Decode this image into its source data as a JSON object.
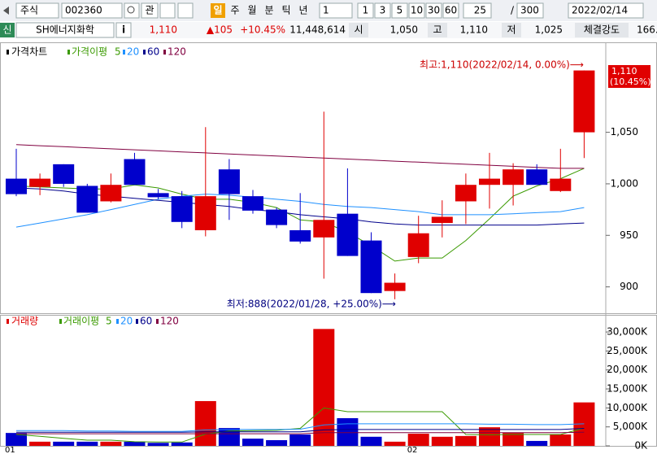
{
  "toolbar": {
    "market": "주식",
    "code": "002360",
    "button": "관",
    "periods": [
      "일",
      "주",
      "월",
      "분",
      "틱",
      "년"
    ],
    "interval": "1",
    "minutes": [
      "1",
      "3",
      "5",
      "10",
      "30",
      "60"
    ],
    "count": "25",
    "separator": "/",
    "total": "300",
    "date": "2022/02/14"
  },
  "quote": {
    "badge": "신",
    "name": "SH에너지화학",
    "info": "i",
    "price": "1,110",
    "change": "▲105",
    "rate": "+10.45%",
    "volume": "11,448,614",
    "open_label": "시",
    "open": "1,050",
    "high_label": "고",
    "high": "1,110",
    "low_label": "저",
    "low": "1,025",
    "strength_label": "체결강도",
    "strength": "166."
  },
  "chart_data": [
    {
      "type": "candlestick",
      "title": "가격차트",
      "ma_label": "가격이평",
      "up_color": "#e00000",
      "down_color": "#0000cc",
      "categories": [
        "01",
        null,
        null,
        null,
        null,
        null,
        null,
        null,
        null,
        null,
        null,
        null,
        null,
        null,
        null,
        null,
        null,
        "02",
        null,
        null,
        null,
        null,
        null,
        null,
        null
      ],
      "open": [
        1005,
        997,
        1019,
        998,
        983,
        1024,
        991,
        988,
        955,
        1014,
        988,
        975,
        955,
        948,
        971,
        945,
        896,
        929,
        962,
        983,
        999,
        999,
        1014,
        993,
        1050
      ],
      "high": [
        1034,
        1010,
        1019,
        1000,
        1010,
        1030,
        995,
        993,
        1055,
        1024,
        994,
        977,
        991,
        1070,
        1015,
        953,
        913,
        969,
        984,
        1010,
        1030,
        1020,
        1019,
        1034,
        1110
      ],
      "low": [
        988,
        989,
        997,
        972,
        982,
        999,
        985,
        957,
        949,
        965,
        971,
        957,
        942,
        908,
        930,
        894,
        888,
        923,
        948,
        961,
        976,
        979,
        1000,
        992,
        1025
      ],
      "close": [
        990,
        1005,
        1000,
        972,
        999,
        999,
        987,
        963,
        988,
        990,
        974,
        960,
        944,
        965,
        930,
        894,
        904,
        952,
        968,
        999,
        1005,
        1014,
        999,
        1005,
        1110
      ],
      "series": [
        {
          "name": "5",
          "color": "#3a9a00",
          "values": [
            998,
            997,
            996,
            995,
            995,
            999,
            996,
            990,
            985,
            985,
            982,
            977,
            965,
            963,
            953,
            940,
            925,
            928,
            928,
            945,
            966,
            988,
            998,
            1005,
            1015
          ]
        },
        {
          "name": "20",
          "color": "#1e90ff",
          "values": [
            958,
            962,
            966,
            970,
            975,
            980,
            985,
            988,
            990,
            989,
            987,
            985,
            983,
            980,
            978,
            977,
            975,
            973,
            970,
            970,
            970,
            971,
            972,
            973,
            977
          ]
        },
        {
          "name": "60",
          "color": "#00008b",
          "values": [
            996,
            995,
            993,
            990,
            988,
            986,
            984,
            982,
            980,
            978,
            975,
            973,
            970,
            968,
            966,
            963,
            961,
            960,
            960,
            960,
            960,
            960,
            960,
            961,
            962
          ]
        },
        {
          "name": "120",
          "color": "#800040",
          "values": [
            1038,
            1037,
            1036,
            1035,
            1034,
            1033,
            1032,
            1031,
            1030,
            1029,
            1028,
            1027,
            1026,
            1025,
            1024,
            1023,
            1022,
            1021,
            1020,
            1019,
            1018,
            1017,
            1016,
            1015,
            1015
          ]
        }
      ],
      "ylim": [
        876,
        1131
      ],
      "yticks": [
        900,
        950,
        {
          "value": 1000,
          "label": "1,000"
        },
        {
          "value": 1050,
          "label": "1,050"
        }
      ],
      "annotations": [
        {
          "text": "최고:1,110(2022/02/14, 0.00%)⟶",
          "color": "#cc0000"
        },
        {
          "text": "최저:888(2022/01/28, +25.00%)⟶",
          "color": "#000080"
        }
      ],
      "last_label": "1,110",
      "last_rate": "(10.45%)"
    },
    {
      "type": "bar",
      "title": "거래량",
      "ma_label": "거래이평",
      "categories": [
        "01",
        null,
        null,
        null,
        null,
        null,
        null,
        null,
        null,
        null,
        null,
        null,
        null,
        null,
        null,
        null,
        null,
        "02",
        null,
        null,
        null,
        null,
        null,
        null,
        null
      ],
      "values": [
        3400,
        1100,
        1100,
        1100,
        1100,
        1100,
        800,
        900,
        11800,
        4700,
        1900,
        1500,
        3000,
        30800,
        7300,
        2400,
        1100,
        3200,
        2400,
        2600,
        4900,
        3400,
        1300,
        3000,
        11449
      ],
      "series": [
        {
          "name": "5",
          "color": "#3a9a00",
          "values": [
            3000,
            2500,
            2000,
            1500,
            1500,
            1100,
            1000,
            1000,
            3100,
            3900,
            4000,
            4100,
            4600,
            10000,
            9000,
            9000,
            9000,
            9000,
            9000,
            3000,
            2900,
            3000,
            3000,
            3000,
            4700
          ]
        },
        {
          "name": "20",
          "color": "#1e90ff",
          "values": [
            4000,
            4000,
            4000,
            3900,
            3900,
            3800,
            3800,
            3800,
            4200,
            4300,
            4300,
            4300,
            4400,
            5500,
            5800,
            5800,
            5800,
            5800,
            5800,
            5800,
            5700,
            5700,
            5600,
            5600,
            5800
          ]
        },
        {
          "name": "60",
          "color": "#00008b",
          "values": [
            3600,
            3600,
            3600,
            3600,
            3600,
            3600,
            3600,
            3600,
            3700,
            3700,
            3700,
            3700,
            3700,
            4200,
            4300,
            4300,
            4300,
            4300,
            4300,
            4300,
            4300,
            4300,
            4300,
            4300,
            4600
          ]
        },
        {
          "name": "120",
          "color": "#800040",
          "values": [
            3200,
            3200,
            3200,
            3200,
            3200,
            3200,
            3200,
            3200,
            3200,
            3200,
            3200,
            3200,
            3200,
            3500,
            3500,
            3500,
            3500,
            3500,
            3500,
            3500,
            3500,
            3500,
            3500,
            3500,
            3600
          ]
        }
      ],
      "ylim": [
        0,
        32800
      ],
      "yticks": [
        {
          "value": 0,
          "label": "0K"
        },
        {
          "value": 5000,
          "label": "5,000K"
        },
        {
          "value": 10000,
          "label": "10,000K"
        },
        {
          "value": 15000,
          "label": "15,000K"
        },
        {
          "value": 20000,
          "label": "20,000K"
        },
        {
          "value": 25000,
          "label": "25,000K"
        },
        {
          "value": 30000,
          "label": "30,000K"
        }
      ]
    }
  ]
}
